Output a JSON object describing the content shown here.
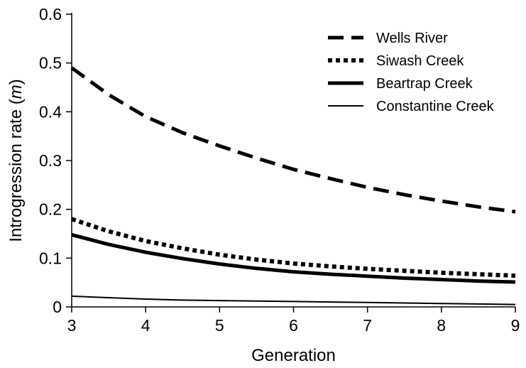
{
  "chart_data": {
    "type": "line",
    "title": "",
    "xlabel": "Generation",
    "ylabel_prefix": "Introgression rate (",
    "ylabel_symbol": "m",
    "ylabel_suffix": ")",
    "xlim": [
      3,
      9
    ],
    "ylim": [
      0,
      0.6
    ],
    "x_ticks": [
      3,
      4,
      5,
      6,
      7,
      8,
      9
    ],
    "x_tick_labels": [
      "3",
      "4",
      "5",
      "6",
      "7",
      "8",
      "9"
    ],
    "y_ticks": [
      0,
      0.1,
      0.2,
      0.3,
      0.4,
      0.5,
      0.6
    ],
    "y_tick_labels": [
      "0",
      "0.1",
      "0.2",
      "0.3",
      "0.4",
      "0.5",
      "0.6"
    ],
    "grid": false,
    "legend_position": "top-right",
    "x": [
      3,
      3.5,
      4,
      4.5,
      5,
      5.5,
      6,
      6.5,
      7,
      7.5,
      8,
      8.5,
      9
    ],
    "series": [
      {
        "name": "Wells River",
        "style": "dashed-thick",
        "values": [
          0.49,
          0.435,
          0.39,
          0.357,
          0.33,
          0.305,
          0.282,
          0.263,
          0.245,
          0.23,
          0.217,
          0.205,
          0.195
        ]
      },
      {
        "name": "Siwash Creek",
        "style": "dotted-thick",
        "values": [
          0.18,
          0.155,
          0.135,
          0.12,
          0.107,
          0.097,
          0.089,
          0.083,
          0.078,
          0.074,
          0.07,
          0.067,
          0.064
        ]
      },
      {
        "name": "Beartrap Creek",
        "style": "solid-thick",
        "values": [
          0.148,
          0.128,
          0.112,
          0.099,
          0.088,
          0.079,
          0.072,
          0.067,
          0.063,
          0.059,
          0.056,
          0.053,
          0.051
        ]
      },
      {
        "name": "Constantine Creek",
        "style": "solid-thin",
        "values": [
          0.022,
          0.019,
          0.016,
          0.014,
          0.013,
          0.012,
          0.011,
          0.01,
          0.009,
          0.008,
          0.007,
          0.006,
          0.005
        ]
      }
    ]
  }
}
